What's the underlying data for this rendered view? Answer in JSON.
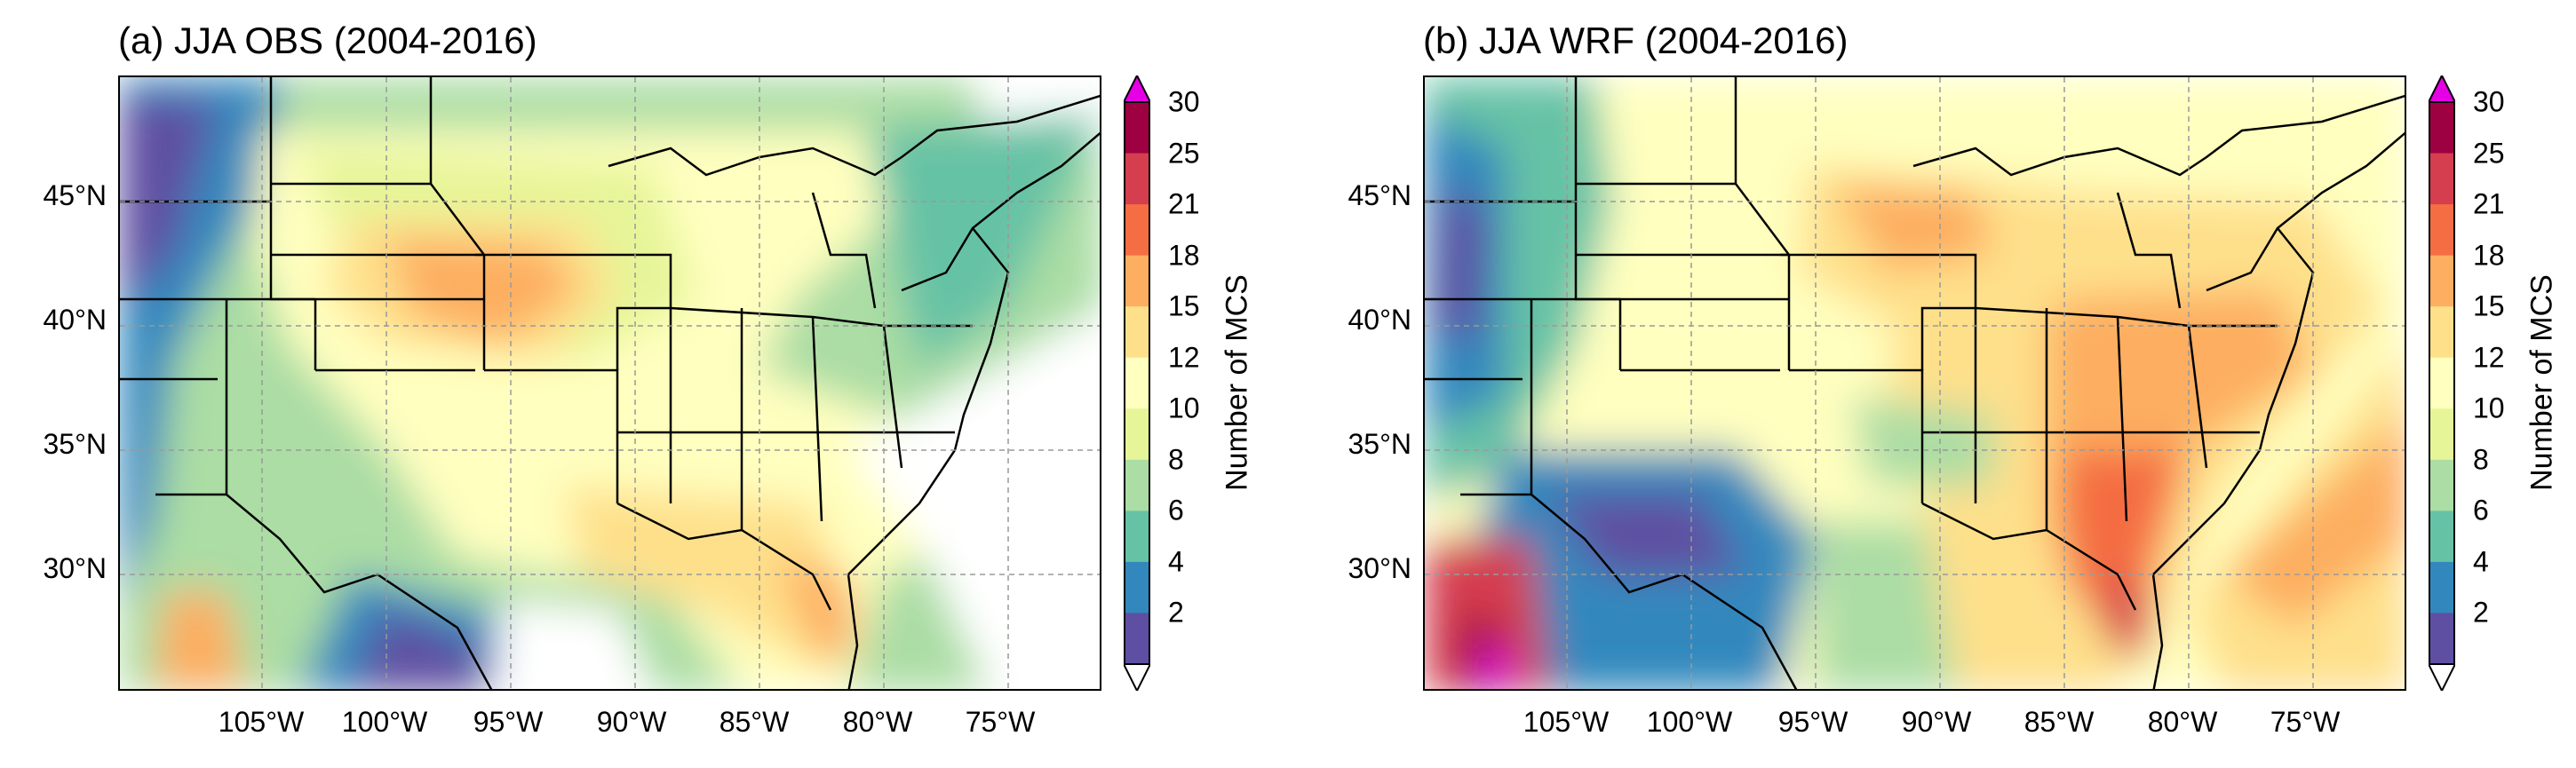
{
  "panels": [
    {
      "id": "a",
      "title": "(a) JJA OBS (2004-2016)",
      "source": "OBS"
    },
    {
      "id": "b",
      "title": "(b) JJA WRF (2004-2016)",
      "source": "WRF"
    }
  ],
  "axes": {
    "lat_labels": [
      "45°N",
      "40°N",
      "35°N",
      "30°N"
    ],
    "lon_labels": [
      "105°W",
      "100°W",
      "95°W",
      "90°W",
      "85°W",
      "80°W",
      "75°W"
    ]
  },
  "colorbar": {
    "title": "Number of MCS",
    "ticks": [
      "30",
      "25",
      "21",
      "18",
      "15",
      "12",
      "10",
      "8",
      "6",
      "4",
      "2"
    ],
    "colors": [
      "#5e4fa2",
      "#3288bd",
      "#66c2a5",
      "#abdda4",
      "#e6f598",
      "#ffffbf",
      "#fee08b",
      "#fdae61",
      "#f46d43",
      "#d53e4f",
      "#9e0142"
    ],
    "over_color": "#e600e6",
    "under_color": "#ffffff"
  }
}
